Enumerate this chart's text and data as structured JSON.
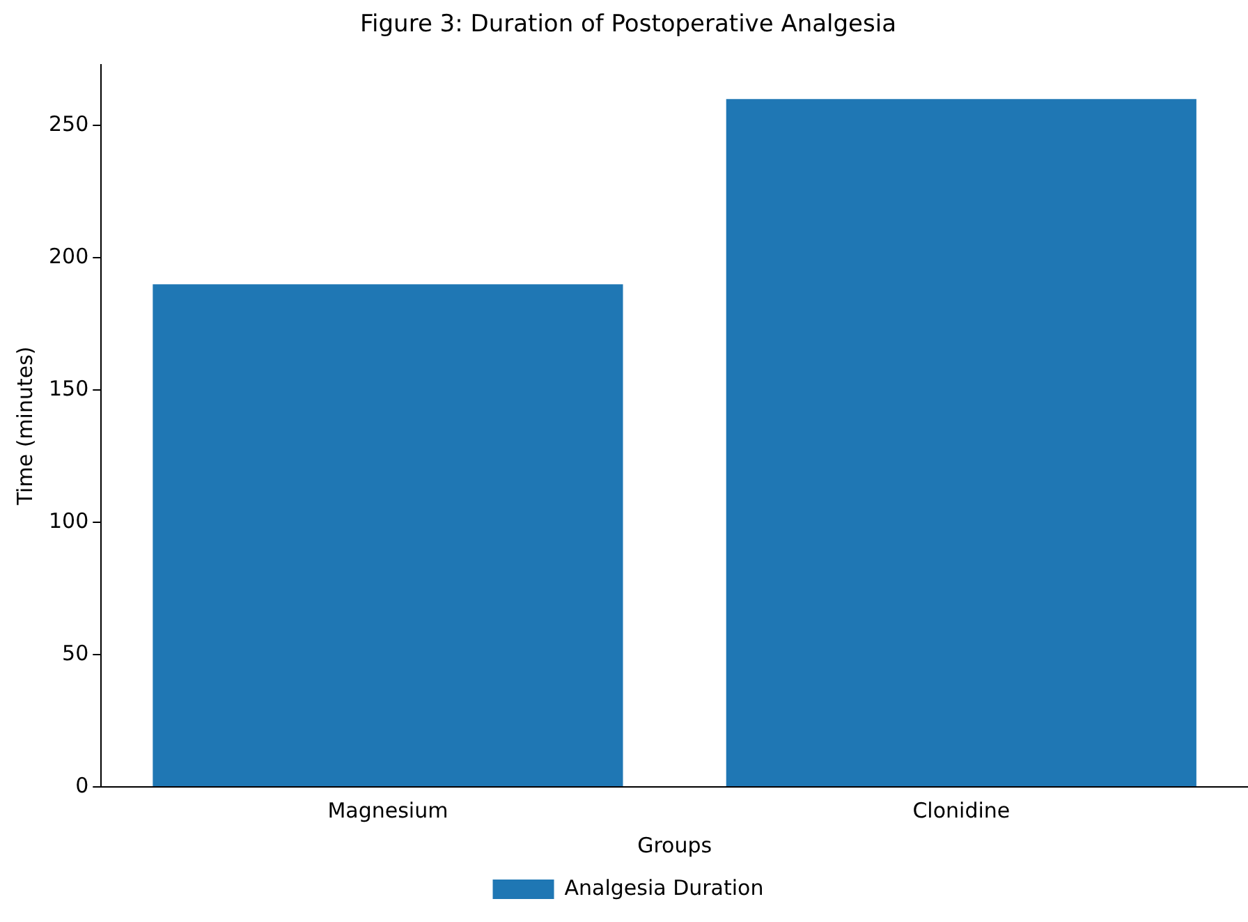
{
  "chart_data": {
    "type": "bar",
    "title": "Figure 3: Duration of Postoperative Analgesia",
    "xlabel": "Groups",
    "ylabel": "Time (minutes)",
    "categories": [
      "Magnesium",
      "Clonidine"
    ],
    "series": [
      {
        "name": "Analgesia Duration",
        "color": "#1f77b4",
        "values": [
          190,
          260
        ]
      }
    ],
    "ylim": [
      0,
      273
    ],
    "yticks": [
      0,
      50,
      100,
      150,
      200,
      250
    ],
    "grid": false,
    "legend": "bottom"
  }
}
